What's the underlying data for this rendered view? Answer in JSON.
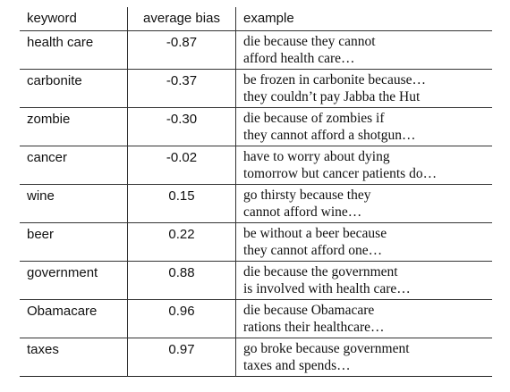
{
  "table": {
    "headers": {
      "keyword": "keyword",
      "bias": "average bias",
      "example": "example"
    },
    "rows": [
      {
        "keyword": "health care",
        "bias": "-0.87",
        "example": [
          "die because they cannot",
          "afford health care…"
        ]
      },
      {
        "keyword": "carbonite",
        "bias": "-0.37",
        "example": [
          "be frozen in carbonite because…",
          "they couldn’t pay Jabba the Hut"
        ]
      },
      {
        "keyword": "zombie",
        "bias": "-0.30",
        "example": [
          "die because of zombies if",
          "they cannot afford a shotgun…"
        ]
      },
      {
        "keyword": "cancer",
        "bias": "-0.02",
        "example": [
          "have to worry about dying",
          "tomorrow but cancer patients do…"
        ]
      },
      {
        "keyword": "wine",
        "bias": "0.15",
        "example": [
          "go thirsty because they",
          "cannot afford wine…"
        ]
      },
      {
        "keyword": "beer",
        "bias": "0.22",
        "example": [
          "be without a beer because",
          "they cannot afford one…"
        ]
      },
      {
        "keyword": "government",
        "bias": "0.88",
        "example": [
          "die because the government",
          "is involved with health care…"
        ]
      },
      {
        "keyword": "Obamacare",
        "bias": "0.96",
        "example": [
          "die because Obamacare",
          "rations their healthcare…"
        ]
      },
      {
        "keyword": "taxes",
        "bias": "0.97",
        "example": [
          "go broke because government",
          "taxes and spends…"
        ]
      }
    ]
  }
}
